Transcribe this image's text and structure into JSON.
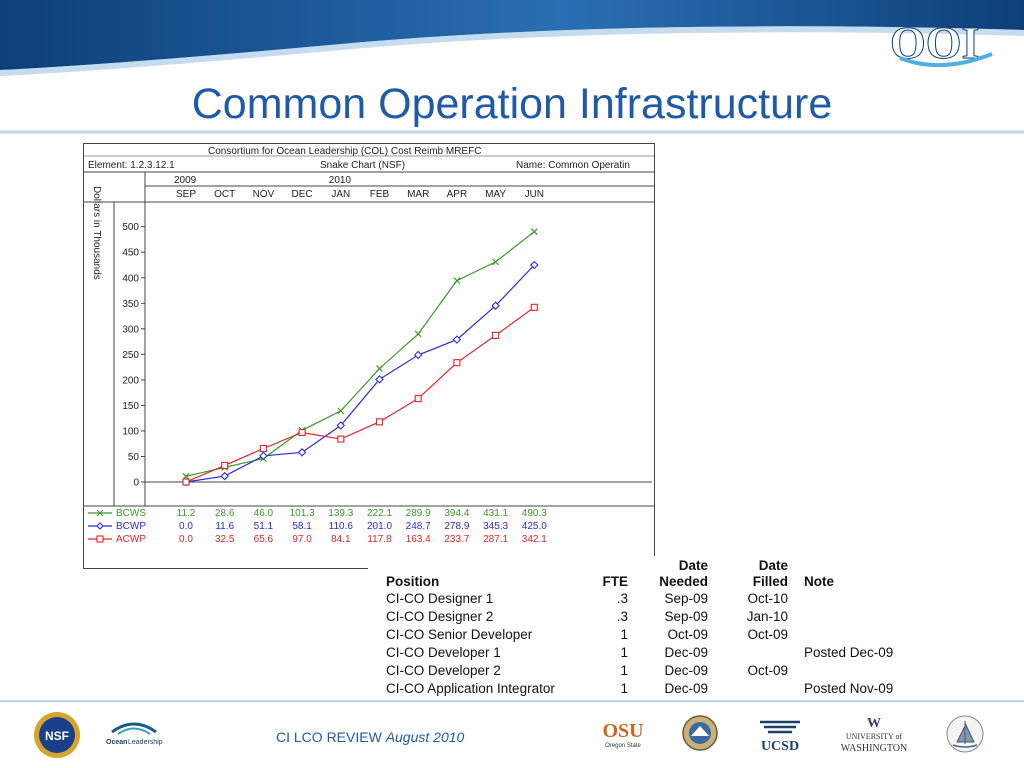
{
  "slide": {
    "title": "Common Operation Infrastructure",
    "logo_text": "OOI",
    "footer_prefix": "CI LCO REVIEW ",
    "footer_date": "August 2010"
  },
  "chart_data": {
    "type": "line",
    "header_title": "Consortium for Ocean Leadership (COL)  Cost Reimb MREFC",
    "element_label": "Element: 1.2.3.12.1",
    "chart_name": "Snake Chart (NSF)",
    "name_label": "Name: Common Operatin",
    "years": [
      {
        "label": "2009",
        "index": 0
      },
      {
        "label": "2010",
        "index": 4
      }
    ],
    "categories": [
      "SEP",
      "OCT",
      "NOV",
      "DEC",
      "JAN",
      "FEB",
      "MAR",
      "APR",
      "MAY",
      "JUN"
    ],
    "ylabel": "Dollars in Thousands",
    "xlabel": "",
    "ylim": [
      0,
      500
    ],
    "yticks": [
      0,
      50,
      100,
      150,
      200,
      250,
      300,
      350,
      400,
      450,
      500
    ],
    "grid": false,
    "legend_position": "bottom",
    "series": [
      {
        "name": "BCWS",
        "color": "#3a9a2a",
        "marker": "x",
        "values": [
          11.2,
          28.6,
          46.0,
          101.3,
          139.3,
          222.1,
          289.9,
          394.4,
          431.1,
          490.3
        ],
        "labels": [
          "11.2",
          "28.6",
          "46.0",
          "101.3",
          "139.3",
          "222.1",
          "289.9",
          "394.4",
          "431.1",
          "490.3"
        ]
      },
      {
        "name": "BCWP",
        "color": "#2b2bd4",
        "marker": "diamond",
        "values": [
          0.0,
          11.6,
          51.1,
          58.1,
          110.6,
          201.0,
          248.7,
          278.9,
          345.3,
          425.0
        ],
        "labels": [
          "0.0",
          "11.6",
          "51.1",
          "58.1",
          "110.6",
          "201.0",
          "248.7",
          "278.9",
          "345.3",
          "425.0"
        ]
      },
      {
        "name": "ACWP",
        "color": "#e0242a",
        "marker": "square",
        "values": [
          0.0,
          32.5,
          65.6,
          97.0,
          84.1,
          117.8,
          163.4,
          233.7,
          287.1,
          342.1
        ],
        "labels": [
          "0.0",
          "32.5",
          "65.6",
          "97.0",
          "84.1",
          "117.8",
          "163.4",
          "233.7",
          "287.1",
          "342.1"
        ]
      }
    ]
  },
  "positions_table": {
    "headers": {
      "position": "Position",
      "fte": "FTE",
      "needed_1": "Date",
      "needed_2": "Needed",
      "filled_1": "Date",
      "filled_2": "Filled",
      "note": "Note"
    },
    "rows": [
      {
        "position": "CI-CO Designer 1",
        "fte": ".3",
        "needed": "Sep-09",
        "filled": "Oct-10",
        "note": ""
      },
      {
        "position": "CI-CO Designer 2",
        "fte": ".3",
        "needed": "Sep-09",
        "filled": "Jan-10",
        "note": ""
      },
      {
        "position": "CI-CO Senior Developer",
        "fte": "1",
        "needed": "Oct-09",
        "filled": "Oct-09",
        "note": ""
      },
      {
        "position": "CI-CO Developer 1",
        "fte": "1",
        "needed": "Dec-09",
        "filled": "",
        "note": "Posted Dec-09"
      },
      {
        "position": "CI-CO Developer 2",
        "fte": "1",
        "needed": "Dec-09",
        "filled": "Oct-09",
        "note": ""
      },
      {
        "position": "CI-CO Application Integrator",
        "fte": "1",
        "needed": "Dec-09",
        "filled": "",
        "note": "Posted Nov-09"
      }
    ]
  },
  "footer_logos": {
    "nsf": "NSF",
    "col_1": "Ocean",
    "col_2": "Leadership",
    "osu_1": "OSU",
    "osu_2": "Oregon State",
    "ucsd": "UCSD",
    "uw_1": "W",
    "uw_2": "UNIVERSITY of",
    "uw_3": "WASHINGTON"
  },
  "colors": {
    "title_blue": "#1f5aa8",
    "header_blue": "#1b4f8a",
    "bcws_green": "#3a9a2a",
    "bcwp_blue": "#2b2bd4",
    "acwp_red": "#e0242a"
  }
}
